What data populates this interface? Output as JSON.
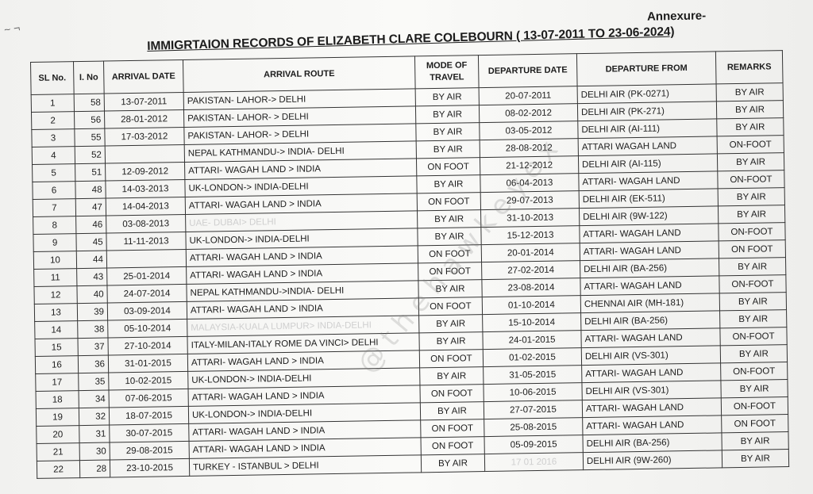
{
  "annexure": "Annexure-",
  "title": "IMMIGRTAION RECORDS OF ELIZABETH CLARE COLEBOURN ( 13-07-2011 TO 23-06-2024)",
  "watermark": "@thehawkeyex",
  "columns": [
    "SL No.",
    "I. No",
    "ARRIVAL DATE",
    "ARRIVAL ROUTE",
    "MODE OF TRAVEL",
    "DEPARTURE DATE",
    "DEPARTURE FROM",
    "REMARKS"
  ],
  "rows": [
    {
      "sl": "1",
      "ino": "58",
      "arrival_date": "13-07-2011",
      "route": "PAKISTAN- LAHOR-> DELHI",
      "mode": "BY AIR",
      "departure_date": "20-07-2011",
      "departure_from": "DELHI AIR (PK-0271)",
      "remarks": "BY AIR"
    },
    {
      "sl": "2",
      "ino": "56",
      "arrival_date": "28-01-2012",
      "route": "PAKISTAN- LAHOR- > DELHI",
      "mode": "BY AIR",
      "departure_date": "08-02-2012",
      "departure_from": "DELHI AIR (PK-271)",
      "remarks": "BY AIR"
    },
    {
      "sl": "3",
      "ino": "55",
      "arrival_date": "17-03-2012",
      "route": "PAKISTAN- LAHOR- > DELHI",
      "mode": "BY AIR",
      "departure_date": "03-05-2012",
      "departure_from": "DELHI AIR (AI-111)",
      "remarks": "BY AIR"
    },
    {
      "sl": "4",
      "ino": "52",
      "arrival_date": "",
      "route": "NEPAL KATHMANDU-> INDIA- DELHI",
      "mode": "BY AIR",
      "departure_date": "28-08-2012",
      "departure_from": "ATTARI WAGAH LAND",
      "remarks": "ON-FOOT"
    },
    {
      "sl": "5",
      "ino": "51",
      "arrival_date": "12-09-2012",
      "route": "ATTARI- WAGAH LAND > INDIA",
      "mode": "ON FOOT",
      "departure_date": "21-12-2012",
      "departure_from": "DELHI AIR (AI-115)",
      "remarks": "BY AIR"
    },
    {
      "sl": "6",
      "ino": "48",
      "arrival_date": "14-03-2013",
      "route": "UK-LONDON-> INDIA-DELHI",
      "mode": "BY AIR",
      "departure_date": "06-04-2013",
      "departure_from": "ATTARI- WAGAH LAND",
      "remarks": "ON-FOOT"
    },
    {
      "sl": "7",
      "ino": "47",
      "arrival_date": "14-04-2013",
      "route": "ATTARI- WAGAH LAND > INDIA",
      "mode": "ON FOOT",
      "departure_date": "29-07-2013",
      "departure_from": "DELHI AIR (EK-511)",
      "remarks": "BY AIR"
    },
    {
      "sl": "8",
      "ino": "46",
      "arrival_date": "03-08-2013",
      "route": "UAE- DUBAI> DELHI",
      "mode": "BY AIR",
      "departure_date": "31-10-2013",
      "departure_from": "DELHI AIR (9W-122)",
      "remarks": "BY AIR"
    },
    {
      "sl": "9",
      "ino": "45",
      "arrival_date": "11-11-2013",
      "route": "UK-LONDON-> INDIA-DELHI",
      "mode": "BY AIR",
      "departure_date": "15-12-2013",
      "departure_from": "ATTARI- WAGAH LAND",
      "remarks": "ON-FOOT"
    },
    {
      "sl": "10",
      "ino": "44",
      "arrival_date": "",
      "route": "ATTARI- WAGAH LAND > INDIA",
      "mode": "ON FOOT",
      "departure_date": "20-01-2014",
      "departure_from": "ATTARI- WAGAH LAND",
      "remarks": "ON FOOT"
    },
    {
      "sl": "11",
      "ino": "43",
      "arrival_date": "25-01-2014",
      "route": "ATTARI- WAGAH LAND > INDIA",
      "mode": "ON FOOT",
      "departure_date": "27-02-2014",
      "departure_from": "DELHI AIR (BA-256)",
      "remarks": "BY AIR"
    },
    {
      "sl": "12",
      "ino": "40",
      "arrival_date": "24-07-2014",
      "route": "NEPAL KATHMANDU->INDIA- DELHI",
      "mode": "BY AIR",
      "departure_date": "23-08-2014",
      "departure_from": "ATTARI- WAGAH LAND",
      "remarks": "ON-FOOT"
    },
    {
      "sl": "13",
      "ino": "39",
      "arrival_date": "03-09-2014",
      "route": "ATTARI- WAGAH LAND > INDIA",
      "mode": "ON FOOT",
      "departure_date": "01-10-2014",
      "departure_from": "CHENNAI AIR (MH-181)",
      "remarks": "BY AIR"
    },
    {
      "sl": "14",
      "ino": "38",
      "arrival_date": "05-10-2014",
      "route": "MALAYSIA-KUALA LUMPUR> INDIA-DELHI",
      "mode": "BY AIR",
      "departure_date": "15-10-2014",
      "departure_from": "DELHI AIR (BA-256)",
      "remarks": "BY AIR"
    },
    {
      "sl": "15",
      "ino": "37",
      "arrival_date": "27-10-2014",
      "route": "ITALY-MILAN-ITALY ROME DA VINCI> DELHI",
      "mode": "BY AIR",
      "departure_date": "24-01-2015",
      "departure_from": "ATTARI- WAGAH LAND",
      "remarks": "ON-FOOT"
    },
    {
      "sl": "16",
      "ino": "36",
      "arrival_date": "31-01-2015",
      "route": "ATTARI- WAGAH LAND > INDIA",
      "mode": "ON FOOT",
      "departure_date": "01-02-2015",
      "departure_from": "DELHI AIR (VS-301)",
      "remarks": "BY AIR"
    },
    {
      "sl": "17",
      "ino": "35",
      "arrival_date": "10-02-2015",
      "route": "UK-LONDON-> INDIA-DELHI",
      "mode": "BY AIR",
      "departure_date": "31-05-2015",
      "departure_from": "ATTARI- WAGAH LAND",
      "remarks": "ON-FOOT"
    },
    {
      "sl": "18",
      "ino": "34",
      "arrival_date": "07-06-2015",
      "route": "ATTARI- WAGAH LAND > INDIA",
      "mode": "ON FOOT",
      "departure_date": "10-06-2015",
      "departure_from": "DELHI AIR (VS-301)",
      "remarks": "BY AIR"
    },
    {
      "sl": "19",
      "ino": "32",
      "arrival_date": "18-07-2015",
      "route": "UK-LONDON-> INDIA-DELHI",
      "mode": "BY AIR",
      "departure_date": "27-07-2015",
      "departure_from": "ATTARI- WAGAH LAND",
      "remarks": "ON-FOOT"
    },
    {
      "sl": "20",
      "ino": "31",
      "arrival_date": "30-07-2015",
      "route": "ATTARI- WAGAH LAND > INDIA",
      "mode": "ON FOOT",
      "departure_date": "25-08-2015",
      "departure_from": "ATTARI- WAGAH LAND",
      "remarks": "ON FOOT"
    },
    {
      "sl": "21",
      "ino": "30",
      "arrival_date": "29-08-2015",
      "route": "ATTARI- WAGAH LAND > INDIA",
      "mode": "ON FOOT",
      "departure_date": "05-09-2015",
      "departure_from": "DELHI AIR (BA-256)",
      "remarks": "BY AIR"
    },
    {
      "sl": "22",
      "ino": "28",
      "arrival_date": "23-10-2015",
      "route": "TURKEY - ISTANBUL > DELHI",
      "mode": "BY AIR",
      "departure_date": "17 01 2016",
      "departure_from": "DELHI AIR (9W-260)",
      "remarks": "BY AIR"
    }
  ]
}
